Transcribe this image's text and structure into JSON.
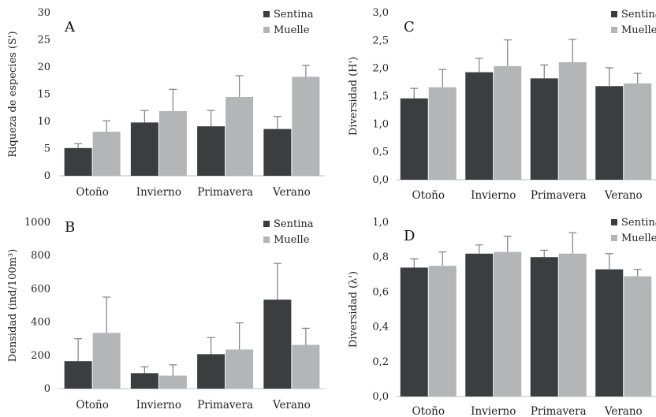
{
  "colors": {
    "sentina": "#3b3d40",
    "muelle": "#b3b5b7",
    "axis": "#bfbfbf",
    "errorbar": "#7f7f7f"
  },
  "chart_data": [
    {
      "panel": "A",
      "type": "bar",
      "ylabel": "Riqueza de especies (S')",
      "categories": [
        "Otoño",
        "Invierno",
        "Primavera",
        "Verano"
      ],
      "ylim": [
        0,
        30
      ],
      "yticks": [
        "0",
        "5",
        "10",
        "15",
        "20",
        "25",
        "30"
      ],
      "legend": {
        "position": "top-right"
      },
      "series": [
        {
          "name": "Sentina",
          "values": [
            5.1,
            9.8,
            9.1,
            8.6
          ],
          "errors": [
            0.8,
            2.2,
            2.9,
            2.3
          ]
        },
        {
          "name": "Muelle",
          "values": [
            8.1,
            11.9,
            14.5,
            18.2
          ],
          "errors": [
            2.0,
            4.0,
            3.9,
            2.1
          ]
        }
      ]
    },
    {
      "panel": "C",
      "type": "bar",
      "ylabel": "Diversidad (H')",
      "categories": [
        "Otoño",
        "Invierno",
        "Primavera",
        "Verano"
      ],
      "ylim": [
        0,
        3
      ],
      "yticks": [
        "0,0",
        "0,5",
        "1,0",
        "1,5",
        "2,0",
        "2,5",
        "3,0"
      ],
      "legend": {
        "position": "top-right"
      },
      "series": [
        {
          "name": "Sentina",
          "values": [
            1.46,
            1.93,
            1.82,
            1.68
          ],
          "errors": [
            0.18,
            0.25,
            0.24,
            0.33
          ]
        },
        {
          "name": "Muelle",
          "values": [
            1.66,
            2.04,
            2.11,
            1.73
          ],
          "errors": [
            0.32,
            0.47,
            0.41,
            0.18
          ]
        }
      ]
    },
    {
      "panel": "B",
      "type": "bar",
      "ylabel": "Densidad (ind/100m³)",
      "categories": [
        "Otoño",
        "Invierno",
        "Primavera",
        "Verano"
      ],
      "ylim": [
        0,
        1000
      ],
      "yticks": [
        "0",
        "200",
        "400",
        "600",
        "800",
        "1000"
      ],
      "legend": {
        "position": "top-right"
      },
      "series": [
        {
          "name": "Sentina",
          "values": [
            165,
            93,
            207,
            535
          ],
          "errors": [
            135,
            38,
            100,
            218
          ]
        },
        {
          "name": "Muelle",
          "values": [
            335,
            78,
            235,
            263
          ],
          "errors": [
            215,
            65,
            160,
            100
          ]
        }
      ]
    },
    {
      "panel": "D",
      "type": "bar",
      "ylabel": "Diversidad (λ')",
      "categories": [
        "Otoño",
        "Invierno",
        "Primavera",
        "Verano"
      ],
      "ylim": [
        0,
        1
      ],
      "yticks": [
        "0,0",
        "0,2",
        "0,4",
        "0,6",
        "0,8",
        "1,0"
      ],
      "legend": {
        "position": "top-right"
      },
      "series": [
        {
          "name": "Sentina",
          "values": [
            0.74,
            0.82,
            0.8,
            0.73
          ],
          "errors": [
            0.05,
            0.05,
            0.04,
            0.09
          ]
        },
        {
          "name": "Muelle",
          "values": [
            0.75,
            0.83,
            0.82,
            0.69
          ],
          "errors": [
            0.08,
            0.09,
            0.12,
            0.04
          ]
        }
      ]
    }
  ]
}
